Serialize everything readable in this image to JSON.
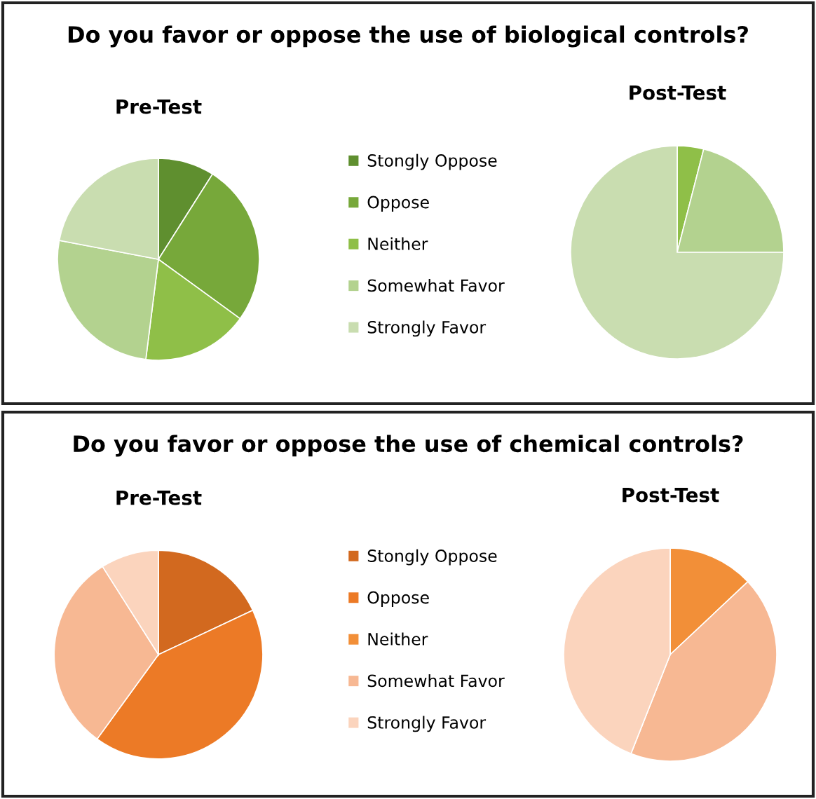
{
  "chart_data": [
    {
      "type": "pie",
      "title": "Do you favor or oppose the use of biological controls?",
      "categories": [
        "Stongly Oppose",
        "Oppose",
        "Neither",
        "Somewhat Favor",
        "Strongly Favor"
      ],
      "colors": [
        "#5f8f2f",
        "#77a83a",
        "#8fbf48",
        "#b3d28f",
        "#c9ddb0"
      ],
      "legend": "right",
      "series": [
        {
          "name": "Pre-Test",
          "values": [
            9,
            26,
            17,
            26,
            22
          ]
        },
        {
          "name": "Post-Test",
          "values": [
            0,
            0,
            4,
            21,
            75
          ]
        }
      ]
    },
    {
      "type": "pie",
      "title": "Do you favor or oppose the use of chemical controls?",
      "categories": [
        "Stongly Oppose",
        "Oppose",
        "Neither",
        "Somewhat Favor",
        "Strongly Favor"
      ],
      "colors": [
        "#d2691f",
        "#ec7a26",
        "#f28f38",
        "#f7b893",
        "#fbd4bd"
      ],
      "legend": "right",
      "series": [
        {
          "name": "Pre-Test",
          "values": [
            18,
            42,
            0,
            31,
            9
          ]
        },
        {
          "name": "Post-Test",
          "values": [
            0,
            0,
            13,
            43,
            44
          ]
        }
      ]
    }
  ]
}
